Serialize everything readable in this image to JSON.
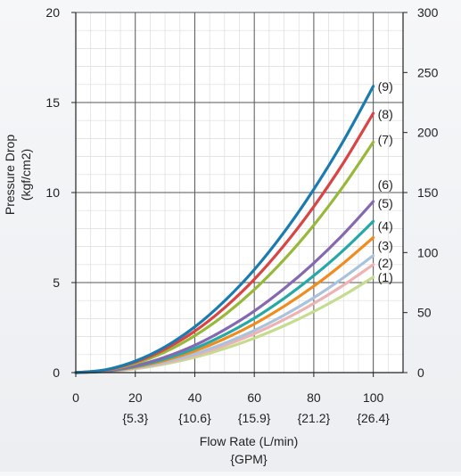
{
  "chart_data": {
    "type": "line",
    "xlabel": "Flow Rate (L/min)",
    "xlabel_sub": "{GPM}",
    "ylabel": "Pressure Drop",
    "ylabel_sub": "(kgf/cm2)",
    "xlim": [
      0,
      110
    ],
    "ylim": [
      0,
      20
    ],
    "y2lim": [
      0,
      300
    ],
    "grid": true,
    "x_ticks": [
      "0",
      "20",
      "40",
      "60",
      "80",
      "100"
    ],
    "x_tick_values": [
      0,
      20,
      40,
      60,
      80,
      100
    ],
    "gpm_ticks": [
      "{5.3}",
      "{10.6}",
      "{15.9}",
      "{21.2}",
      "{26.4}"
    ],
    "gpm_tick_values": [
      20,
      40,
      60,
      80,
      100
    ],
    "y_ticks": [
      "0",
      "5",
      "10",
      "15",
      "20"
    ],
    "y_tick_values": [
      0,
      5,
      10,
      15,
      20
    ],
    "y2_ticks": [
      "0",
      "50",
      "100",
      "150",
      "200",
      "250",
      "300"
    ],
    "y2_tick_values": [
      0,
      50,
      100,
      150,
      200,
      250,
      300
    ],
    "x": [
      0,
      10,
      20,
      30,
      40,
      50,
      60,
      70,
      80,
      90,
      100
    ],
    "series": [
      {
        "name": "(1)",
        "color": "#c5dc8e",
        "values": [
          0,
          0.05,
          0.21,
          0.48,
          0.85,
          1.33,
          1.91,
          2.6,
          3.39,
          4.29,
          5.3
        ]
      },
      {
        "name": "(2)",
        "color": "#eeb2b2",
        "values": [
          0,
          0.06,
          0.24,
          0.54,
          0.96,
          1.5,
          2.16,
          2.94,
          3.84,
          4.86,
          6.0
        ]
      },
      {
        "name": "(3)",
        "color": "#a9c3dd",
        "values": [
          0,
          0.07,
          0.26,
          0.59,
          1.04,
          1.63,
          2.34,
          3.19,
          4.16,
          5.27,
          6.5
        ]
      },
      {
        "name": "(4)",
        "color": "#f08b1e",
        "values": [
          0,
          0.08,
          0.3,
          0.68,
          1.2,
          1.88,
          2.7,
          3.68,
          4.8,
          6.08,
          7.5
        ]
      },
      {
        "name": "(5)",
        "color": "#26a9a6",
        "values": [
          0,
          0.08,
          0.34,
          0.76,
          1.34,
          2.1,
          3.02,
          4.12,
          5.38,
          6.8,
          8.4
        ]
      },
      {
        "name": "(6)",
        "color": "#8468b0",
        "values": [
          0,
          0.1,
          0.38,
          0.86,
          1.52,
          2.38,
          3.42,
          4.66,
          6.08,
          7.7,
          9.5
        ]
      },
      {
        "name": "(7)",
        "color": "#98b83a",
        "values": [
          0,
          0.13,
          0.51,
          1.15,
          2.05,
          3.2,
          4.61,
          6.27,
          8.19,
          10.37,
          12.8
        ]
      },
      {
        "name": "(8)",
        "color": "#d94444",
        "values": [
          0,
          0.14,
          0.58,
          1.3,
          2.3,
          3.6,
          5.18,
          7.06,
          9.22,
          11.66,
          14.4
        ]
      },
      {
        "name": "(9)",
        "color": "#1a7bb0",
        "values": [
          0,
          0.16,
          0.64,
          1.43,
          2.54,
          3.98,
          5.72,
          7.79,
          10.18,
          12.88,
          15.9
        ]
      }
    ],
    "label_values": [
      5.3,
      6.1,
      7.05,
      8.15,
      9.4,
      10.45,
      12.95,
      14.35,
      15.9
    ]
  }
}
